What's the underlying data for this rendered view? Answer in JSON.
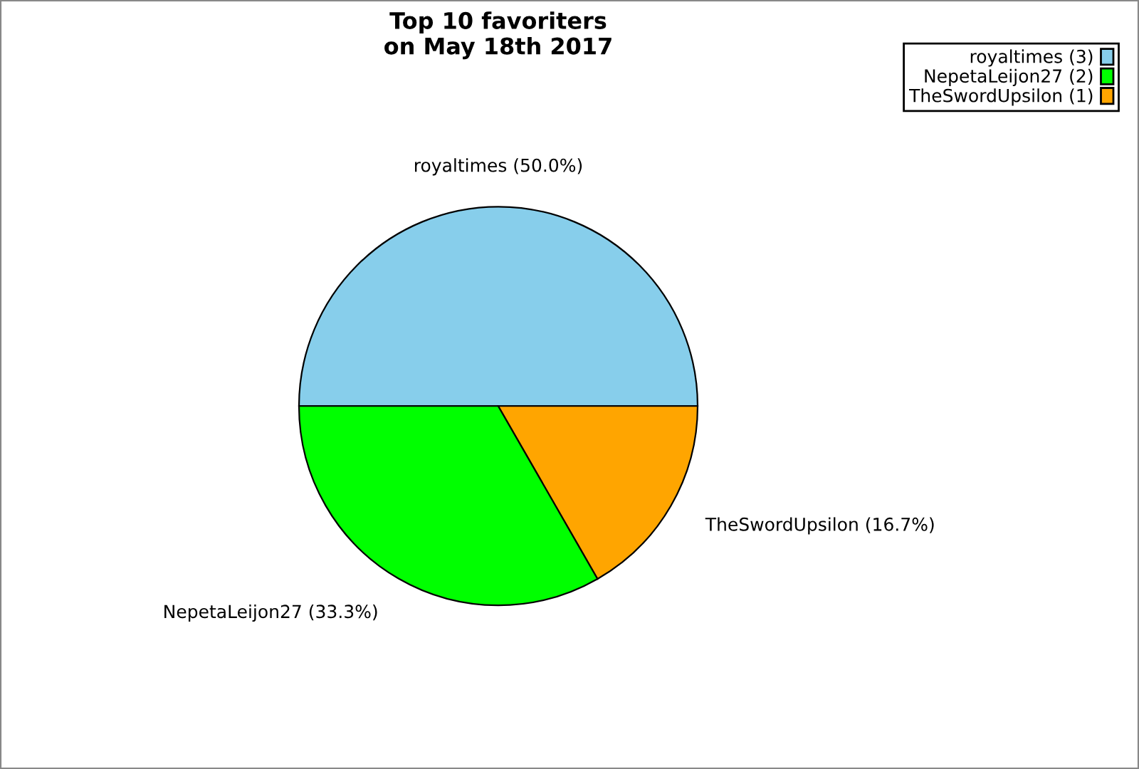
{
  "chart_data": {
    "type": "pie",
    "title": "Top 10 favoriters\non May 18th 2017",
    "categories": [
      "royaltimes (3)",
      "NepetaLeijon27 (2)",
      "TheSwordUpsilon (1)"
    ],
    "values": [
      50.0,
      33.3,
      16.7
    ],
    "value_labels": [
      "royaltimes (50.0%)",
      "NepetaLeijon27 (33.3%)",
      "TheSwordUpsilon (16.7%)"
    ],
    "colors": [
      "#87ceeb",
      "#00ff00",
      "#ffa500"
    ],
    "legend": "top right"
  }
}
